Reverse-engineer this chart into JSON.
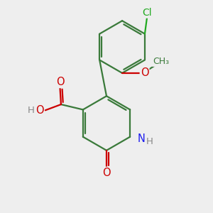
{
  "background_color": "#eeeeee",
  "bond_color": "#3a7a3a",
  "bond_width": 1.6,
  "atom_colors": {
    "C": "#3a7a3a",
    "O": "#cc0000",
    "N": "#1a1aee",
    "Cl": "#22aa22",
    "H": "#888888"
  },
  "font_size": 9.5
}
